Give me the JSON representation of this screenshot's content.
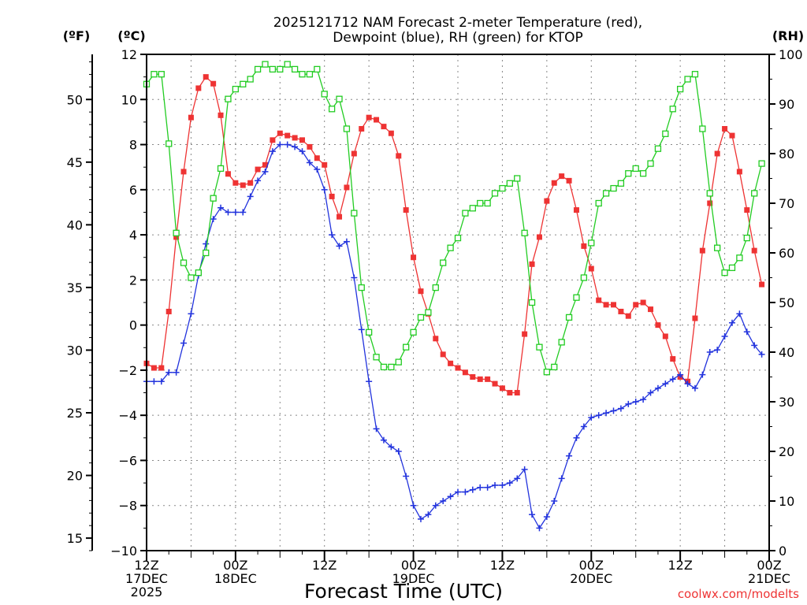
{
  "chart_data": {
    "type": "line",
    "title": [
      "2025121712 NAM Forecast 2-meter Temperature (red),",
      "Dewpoint (blue), RH (green) for KTOP"
    ],
    "xlabel": "Forecast Time (UTC)",
    "credit": "coolwx.com/modelts",
    "axes": {
      "fahrenheit": {
        "label": "(ºF)",
        "ticks": [
          15,
          20,
          25,
          30,
          35,
          40,
          45,
          50
        ]
      },
      "celsius": {
        "label": "(ºC)",
        "range": [
          -10,
          12
        ],
        "ticks": [
          -10,
          -8,
          -6,
          -4,
          -2,
          0,
          2,
          4,
          6,
          8,
          10,
          12
        ]
      },
      "rh": {
        "label": "(RH)",
        "range": [
          0,
          100
        ],
        "ticks": [
          0,
          10,
          20,
          30,
          40,
          50,
          60,
          70,
          80,
          90,
          100
        ]
      }
    },
    "x_range_hours": [
      0,
      84
    ],
    "x_ticks": [
      {
        "hour": 0,
        "lines": [
          "12Z",
          "17DEC",
          "2025"
        ]
      },
      {
        "hour": 12,
        "lines": [
          "00Z",
          "18DEC"
        ]
      },
      {
        "hour": 24,
        "lines": [
          "12Z"
        ]
      },
      {
        "hour": 36,
        "lines": [
          "00Z",
          "19DEC"
        ]
      },
      {
        "hour": 48,
        "lines": [
          "12Z"
        ]
      },
      {
        "hour": 60,
        "lines": [
          "00Z",
          "20DEC"
        ]
      },
      {
        "hour": 72,
        "lines": [
          "12Z"
        ]
      },
      {
        "hour": 84,
        "lines": [
          "00Z",
          "21DEC"
        ]
      }
    ],
    "grid": true,
    "series": [
      {
        "name": "Temperature",
        "unit": "C",
        "color": "#ee3333",
        "marker": "square-filled",
        "values": [
          -1.7,
          -1.9,
          -1.9,
          0.6,
          3.9,
          6.8,
          9.2,
          10.5,
          11.0,
          10.7,
          9.3,
          6.7,
          6.3,
          6.2,
          6.3,
          6.9,
          7.1,
          8.2,
          8.5,
          8.4,
          8.3,
          8.2,
          7.9,
          7.4,
          7.1,
          5.7,
          4.8,
          6.1,
          7.6,
          8.7,
          9.2,
          9.1,
          8.8,
          8.5,
          7.5,
          5.1,
          3.0,
          1.5,
          0.5,
          -0.6,
          -1.3,
          -1.7,
          -1.9,
          -2.1,
          -2.3,
          -2.4,
          -2.4,
          -2.6,
          -2.8,
          -3.0,
          -3.0,
          -0.4,
          2.7,
          3.9,
          5.5,
          6.3,
          6.6,
          6.4,
          5.1,
          3.5,
          2.5,
          1.1,
          0.9,
          0.9,
          0.6,
          0.4,
          0.9,
          1.0,
          0.7,
          0.0,
          -0.5,
          -1.5,
          -2.3,
          -2.5,
          0.3,
          3.3,
          5.4,
          7.6,
          8.7,
          8.4,
          6.8,
          5.1,
          3.3,
          1.8
        ]
      },
      {
        "name": "Dewpoint",
        "unit": "C",
        "color": "#2233dd",
        "marker": "plus",
        "values": [
          -2.5,
          -2.5,
          -2.5,
          -2.1,
          -2.1,
          -0.8,
          0.5,
          2.2,
          3.6,
          4.7,
          5.2,
          5.0,
          5.0,
          5.0,
          5.7,
          6.4,
          6.8,
          7.7,
          8.0,
          8.0,
          7.9,
          7.7,
          7.2,
          6.9,
          6.0,
          4.0,
          3.5,
          3.7,
          2.1,
          -0.2,
          -2.5,
          -4.6,
          -5.1,
          -5.4,
          -5.6,
          -6.7,
          -8.0,
          -8.6,
          -8.4,
          -8.0,
          -7.8,
          -7.6,
          -7.4,
          -7.4,
          -7.3,
          -7.2,
          -7.2,
          -7.1,
          -7.1,
          -7.0,
          -6.8,
          -6.4,
          -8.4,
          -9.0,
          -8.5,
          -7.8,
          -6.8,
          -5.8,
          -5.0,
          -4.5,
          -4.1,
          -4.0,
          -3.9,
          -3.8,
          -3.7,
          -3.5,
          -3.4,
          -3.3,
          -3.0,
          -2.8,
          -2.6,
          -2.4,
          -2.2,
          -2.6,
          -2.8,
          -2.2,
          -1.2,
          -1.1,
          -0.5,
          0.1,
          0.5,
          -0.3,
          -0.9,
          -1.3
        ]
      },
      {
        "name": "RH",
        "unit": "%",
        "color": "#22cc22",
        "marker": "square-open",
        "values": [
          94,
          96,
          96,
          82,
          64,
          58,
          55,
          56,
          60,
          71,
          77,
          91,
          93,
          94,
          95,
          97,
          98,
          97,
          97,
          98,
          97,
          96,
          96,
          97,
          92,
          89,
          91,
          85,
          68,
          53,
          44,
          39,
          37,
          37,
          38,
          41,
          44,
          47,
          48,
          53,
          58,
          61,
          63,
          68,
          69,
          70,
          70,
          72,
          73,
          74,
          75,
          64,
          50,
          41,
          36,
          37,
          42,
          47,
          51,
          55,
          62,
          70,
          72,
          73,
          74,
          76,
          77,
          76,
          78,
          81,
          84,
          89,
          93,
          95,
          96,
          85,
          72,
          61,
          56,
          57,
          59,
          63,
          72,
          78
        ]
      }
    ]
  }
}
